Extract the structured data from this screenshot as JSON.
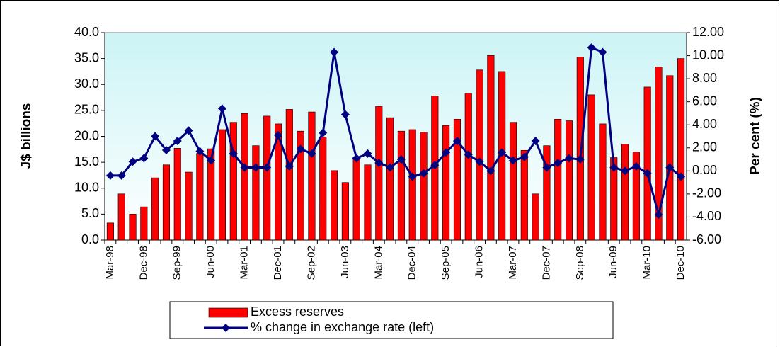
{
  "chart_data": {
    "type": "bar-line",
    "categories": [
      "Mar-98",
      null,
      null,
      "Dec-98",
      null,
      null,
      "Sep-99",
      null,
      null,
      "Jun-00",
      null,
      null,
      "Mar-01",
      null,
      null,
      "Dec-01",
      null,
      null,
      "Sep-02",
      null,
      null,
      "Jun-03",
      null,
      null,
      "Mar-04",
      null,
      null,
      "Dec-04",
      null,
      null,
      "Sep-05",
      null,
      null,
      "Jun-06",
      null,
      null,
      "Mar-07",
      null,
      null,
      "Dec-07",
      null,
      null,
      "Sep-08",
      null,
      null,
      "Jun-09",
      null,
      null,
      "Mar-10",
      null,
      null,
      "Dec-10"
    ],
    "series": [
      {
        "name": "Excess reserves",
        "type": "bar",
        "color": "#ff0000",
        "values": [
          3.3,
          8.9,
          5.0,
          6.4,
          12.0,
          14.5,
          17.7,
          13.1,
          16.7,
          17.6,
          21.3,
          22.7,
          24.4,
          18.2,
          23.9,
          22.4,
          25.2,
          21.0,
          24.7,
          19.9,
          13.4,
          11.1,
          16.0,
          14.5,
          25.8,
          23.6,
          21.0,
          21.3,
          20.8,
          27.8,
          22.1,
          23.3,
          28.3,
          32.8,
          35.6,
          32.5,
          22.7,
          17.3,
          8.9,
          18.2,
          23.3,
          23.0,
          35.3,
          28.0,
          22.4,
          15.9,
          18.5,
          17.0,
          29.5,
          33.4,
          31.7,
          35.0
        ]
      },
      {
        "name": "% change in exchange rate (left)",
        "type": "line",
        "axis": "y2",
        "color": "#000080",
        "values": [
          -0.4,
          -0.4,
          0.8,
          1.1,
          3.0,
          1.8,
          2.6,
          3.5,
          1.7,
          0.9,
          5.4,
          1.5,
          0.3,
          0.3,
          0.3,
          3.1,
          0.4,
          1.9,
          1.5,
          3.3,
          10.3,
          4.9,
          1.1,
          1.5,
          0.7,
          0.3,
          1.0,
          -0.5,
          -0.2,
          0.5,
          1.6,
          2.6,
          1.4,
          0.8,
          0.0,
          1.6,
          0.9,
          1.2,
          2.6,
          0.3,
          0.7,
          1.1,
          1.0,
          10.7,
          10.3,
          0.3,
          0.0,
          0.4,
          -0.2,
          -3.8,
          0.3,
          -0.5
        ]
      }
    ],
    "ylabel": "J$ billions",
    "y2label": "Per cent (%)",
    "ylim": [
      0,
      40
    ],
    "yticks": [
      {
        "value": 0,
        "label": "0.0"
      },
      {
        "value": 5,
        "label": "5.0"
      },
      {
        "value": 10,
        "label": "10.0"
      },
      {
        "value": 15,
        "label": "15.0"
      },
      {
        "value": 20,
        "label": "20.0"
      },
      {
        "value": 25,
        "label": "25.0"
      },
      {
        "value": 30,
        "label": "30.0"
      },
      {
        "value": 35,
        "label": "35.0"
      },
      {
        "value": 40,
        "label": "40.0"
      }
    ],
    "y2lim": [
      -6,
      12
    ],
    "y2ticks": [
      {
        "value": -6,
        "label": "-6.00"
      },
      {
        "value": -4,
        "label": "-4.00"
      },
      {
        "value": -2,
        "label": "-2.00"
      },
      {
        "value": 0,
        "label": "0.00"
      },
      {
        "value": 2,
        "label": "2.00"
      },
      {
        "value": 4,
        "label": "4.00"
      },
      {
        "value": 6,
        "label": "6.00"
      },
      {
        "value": 8,
        "label": "8.00"
      },
      {
        "value": 10,
        "label": "10.00"
      },
      {
        "value": 12,
        "label": "12.00"
      }
    ],
    "grid": false,
    "legend": "bottom"
  }
}
